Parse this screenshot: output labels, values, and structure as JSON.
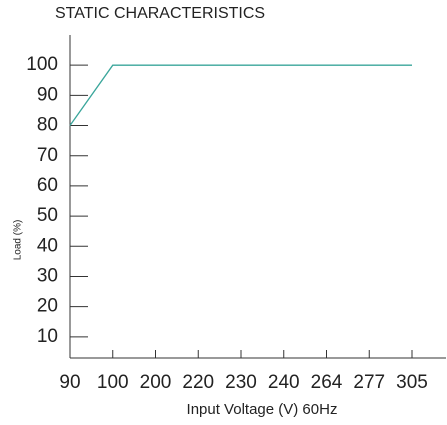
{
  "chart_data": {
    "type": "line",
    "title": "STATIC CHARACTERISTICS",
    "x_label": "Input Voltage (V) 60Hz",
    "y_label": "Load (%)",
    "categories": [
      "90",
      "100",
      "200",
      "220",
      "230",
      "240",
      "264",
      "277",
      "305"
    ],
    "values": [
      80,
      100,
      100,
      100,
      100,
      100,
      100,
      100,
      100
    ],
    "color": "#3aa69b",
    "ylim": [
      3,
      110
    ],
    "yticks": [
      10,
      20,
      30,
      40,
      50,
      60,
      70,
      80,
      90,
      100
    ]
  }
}
